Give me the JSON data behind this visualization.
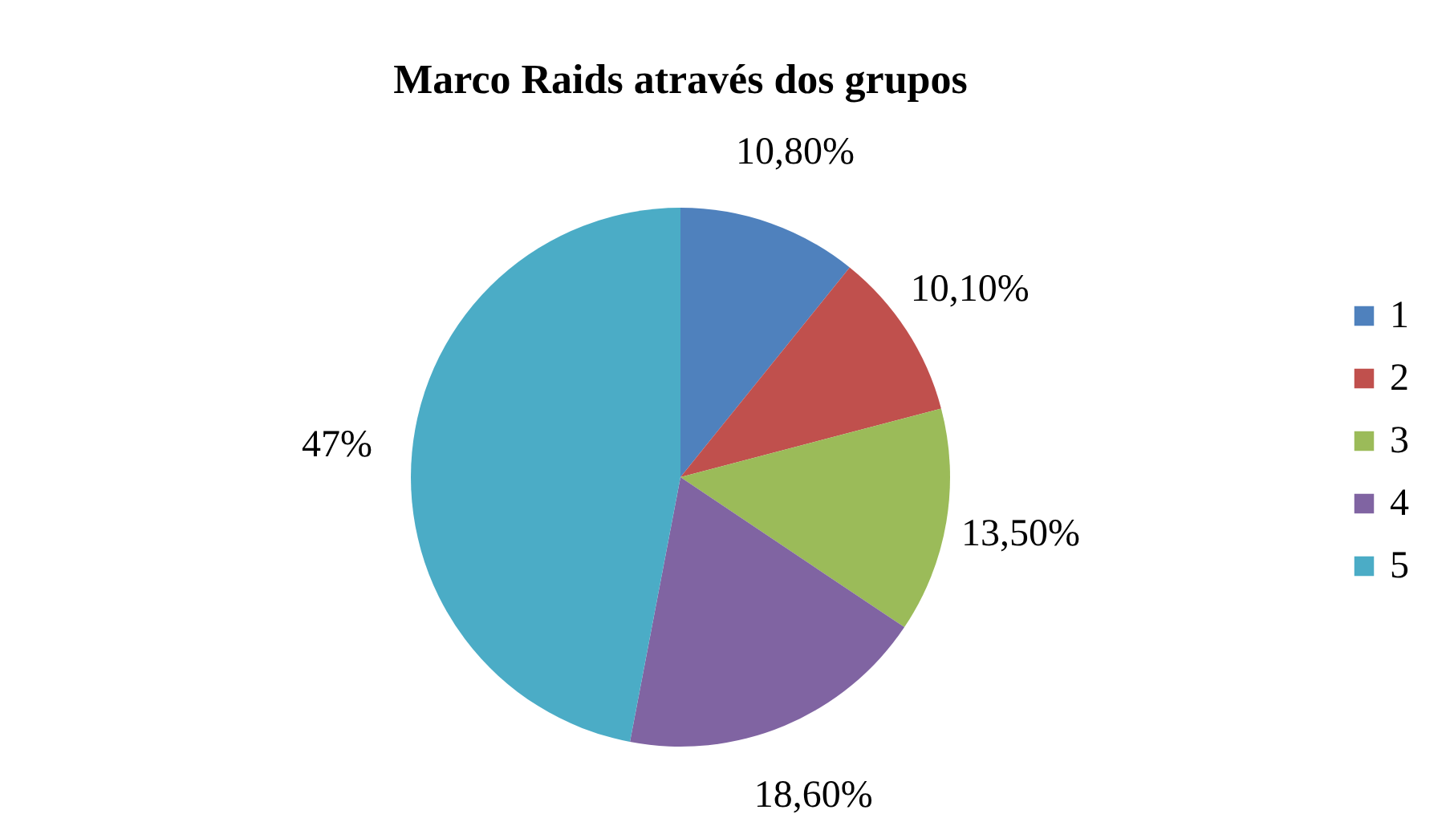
{
  "chart_data": {
    "type": "pie",
    "title": "Marco Raids através dos grupos",
    "categories": [
      "1",
      "2",
      "3",
      "4",
      "5"
    ],
    "values": [
      10.8,
      10.1,
      13.5,
      18.6,
      47
    ],
    "value_labels": [
      "10,80%",
      "10,10%",
      "13,50%",
      "18,60%",
      "47%"
    ],
    "colors": [
      "#4f81bd",
      "#c0504d",
      "#9bbb59",
      "#8064a2",
      "#4bacc6"
    ],
    "legend": "right"
  }
}
